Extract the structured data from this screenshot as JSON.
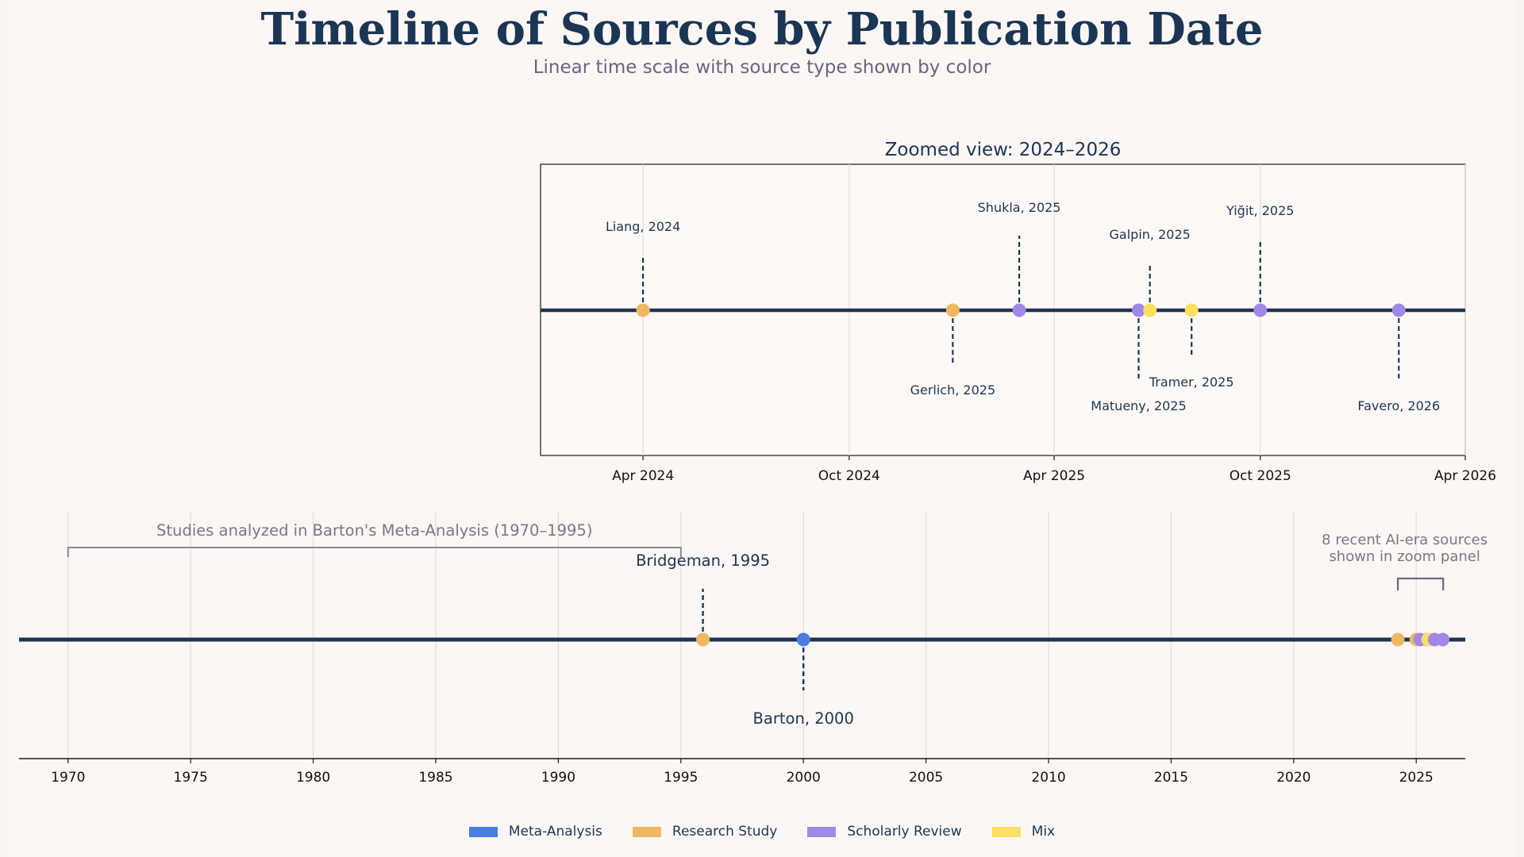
{
  "title": "Timeline of Sources by Publication Date",
  "subtitle": "Linear time scale with source type shown by color",
  "colors": {
    "Meta-Analysis": "#4a7de0",
    "Research Study": "#efb860",
    "Scholarly Review": "#9f88e8",
    "Mix": "#fbe060",
    "axis_line": "#1b3554",
    "grid": "#e3dede",
    "annotation": "#7d7585"
  },
  "chart_data": [
    {
      "panel": "zoom",
      "type": "scatter",
      "title": "Zoomed view: 2024–2026",
      "x_ticks": [
        "Apr 2024",
        "Oct 2024",
        "Apr 2025",
        "Oct 2025",
        "Apr 2026"
      ],
      "xlim": [
        "2024-01-01",
        "2026-04-01"
      ],
      "grid": true,
      "points": [
        {
          "label": "Liang, 2024",
          "date": "2024-04-01",
          "type": "Research Study",
          "label_pos": "above",
          "stem": 0.35
        },
        {
          "label": "Gerlich, 2025",
          "date": "2025-01-01",
          "type": "Research Study",
          "label_pos": "below",
          "stem": 0.35
        },
        {
          "label": "Shukla, 2025",
          "date": "2025-03-01",
          "type": "Scholarly Review",
          "label_pos": "above",
          "stem": 0.47
        },
        {
          "label": "Matueny, 2025",
          "date": "2025-06-15",
          "type": "Scholarly Review",
          "label_pos": "below",
          "stem": 0.45
        },
        {
          "label": "Galpin, 2025",
          "date": "2025-06-25",
          "type": "Mix",
          "label_pos": "above",
          "stem": 0.3
        },
        {
          "label": "Tramer, 2025",
          "date": "2025-08-01",
          "type": "Mix",
          "label_pos": "below",
          "stem": 0.3
        },
        {
          "label": "Yiğit, 2025",
          "date": "2025-10-01",
          "type": "Scholarly Review",
          "label_pos": "above",
          "stem": 0.45
        },
        {
          "label": "Favero, 2026",
          "date": "2026-02-01",
          "type": "Scholarly Review",
          "label_pos": "below",
          "stem": 0.45
        }
      ]
    },
    {
      "panel": "full",
      "type": "scatter",
      "x_ticks": [
        "1970",
        "1975",
        "1980",
        "1985",
        "1990",
        "1995",
        "2000",
        "2005",
        "2010",
        "2015",
        "2020",
        "2025"
      ],
      "xlim": [
        1968.0,
        2027.0
      ],
      "grid": true,
      "points": [
        {
          "label": "Bridgeman, 1995",
          "year": 1995.9,
          "type": "Research Study",
          "label_pos": "above",
          "stem": 0.5
        },
        {
          "label": "Barton, 2000",
          "year": 2000.0,
          "type": "Meta-Analysis",
          "label_pos": "below",
          "stem": 0.5
        },
        {
          "label": "Liang, 2024",
          "year": 2024.25,
          "type": "Research Study",
          "label_pos": "none",
          "stem": 0
        },
        {
          "label": "Gerlich, 2025",
          "year": 2025.0,
          "type": "Research Study",
          "label_pos": "none",
          "stem": 0
        },
        {
          "label": "Shukla, 2025",
          "year": 2025.16,
          "type": "Scholarly Review",
          "label_pos": "none",
          "stem": 0
        },
        {
          "label": "Matueny, 2025",
          "year": 2025.45,
          "type": "Scholarly Review",
          "label_pos": "none",
          "stem": 0
        },
        {
          "label": "Galpin, 2025",
          "year": 2025.48,
          "type": "Mix",
          "label_pos": "none",
          "stem": 0
        },
        {
          "label": "Tramer, 2025",
          "year": 2025.58,
          "type": "Mix",
          "label_pos": "none",
          "stem": 0
        },
        {
          "label": "Yiğit, 2025",
          "year": 2025.75,
          "type": "Scholarly Review",
          "label_pos": "none",
          "stem": 0
        },
        {
          "label": "Favero, 2026",
          "year": 2026.08,
          "type": "Scholarly Review",
          "label_pos": "none",
          "stem": 0
        }
      ],
      "annotations": [
        {
          "text": "Studies analyzed in Barton's Meta-Analysis (1970–1995)",
          "from": 1970,
          "to": 1995
        },
        {
          "text_lines": [
            "8 recent AI-era sources",
            "shown in zoom panel"
          ],
          "from": 2024.25,
          "to": 2026.1
        }
      ]
    }
  ],
  "legend": [
    {
      "label": "Meta-Analysis",
      "color": "#4a7de0"
    },
    {
      "label": "Research Study",
      "color": "#efb860"
    },
    {
      "label": "Scholarly Review",
      "color": "#9f88e8"
    },
    {
      "label": "Mix",
      "color": "#fbe060"
    }
  ]
}
